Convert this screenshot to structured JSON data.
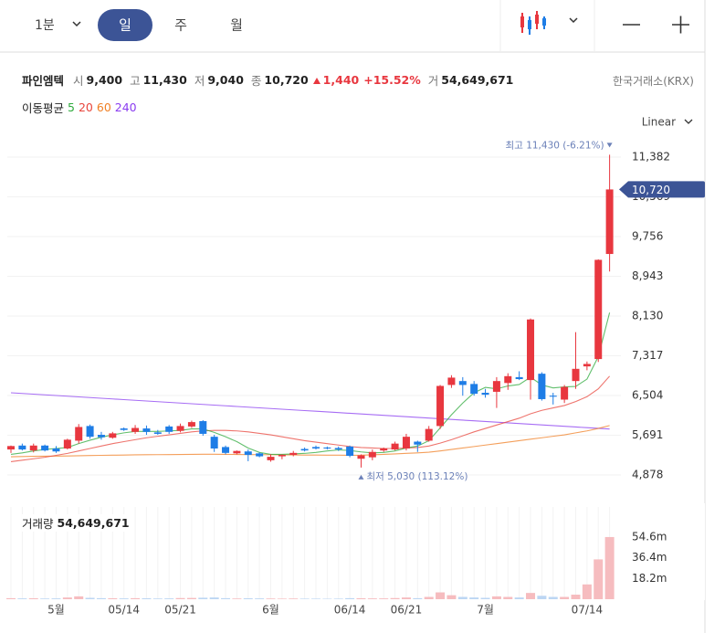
{
  "toolbar": {
    "tabs": [
      "1분",
      "일",
      "주",
      "월"
    ]
  },
  "header": {
    "name": "파인엠텍",
    "fields": [
      {
        "label": "시",
        "value": "9,400"
      },
      {
        "label": "고",
        "value": "11,430"
      },
      {
        "label": "저",
        "value": "9,040"
      },
      {
        "label": "종",
        "value": "10,720"
      }
    ],
    "change": "1,440",
    "change_pct": "+15.52%",
    "volume_label": "거",
    "volume": "54,649,671",
    "exchange": "한국거래소(KRX)",
    "ma_label": "이동평균",
    "scale_mode": "Linear"
  },
  "chart_data": [
    {
      "type": "candlestick",
      "up_color": "#e8373f",
      "down_color": "#1e7de6",
      "grid": true,
      "categories": [
        null,
        null,
        null,
        null,
        "5월",
        null,
        null,
        null,
        null,
        null,
        "05/14",
        null,
        null,
        null,
        null,
        "05/21",
        null,
        null,
        null,
        null,
        null,
        null,
        null,
        "6월",
        null,
        null,
        null,
        null,
        null,
        null,
        "06/14",
        null,
        null,
        null,
        null,
        "06/21",
        null,
        null,
        null,
        null,
        null,
        null,
        "7월",
        null,
        null,
        null,
        null,
        null,
        null,
        null,
        null,
        "07/14",
        null,
        null
      ],
      "open": [
        5400,
        5480,
        5380,
        5480,
        5420,
        5420,
        5580,
        5880,
        5700,
        5640,
        5830,
        5760,
        5830,
        5750,
        5870,
        5780,
        5870,
        5980,
        5660,
        5450,
        5320,
        5360,
        5320,
        5180,
        5260,
        5290,
        5410,
        5450,
        5440,
        5430,
        5460,
        5210,
        5240,
        5380,
        5400,
        5420,
        5560,
        5580,
        5880,
        6720,
        6800,
        6740,
        6560,
        6580,
        6760,
        6880,
        6820,
        6950,
        6500,
        6420,
        6800,
        7100,
        7250,
        9400
      ],
      "high": [
        5480,
        5520,
        5520,
        5500,
        5470,
        5620,
        5920,
        5910,
        5760,
        5760,
        5850,
        5900,
        5890,
        5800,
        5900,
        5930,
        5990,
        6000,
        5700,
        5480,
        5380,
        5400,
        5340,
        5300,
        5300,
        5370,
        5440,
        5480,
        5460,
        5460,
        5480,
        5300,
        5400,
        5440,
        5560,
        5720,
        5580,
        5880,
        6720,
        6920,
        6880,
        6800,
        6640,
        6880,
        6960,
        7000,
        8080,
        6980,
        6560,
        6720,
        7800,
        7200,
        9290,
        11430
      ],
      "low": [
        5330,
        5380,
        5340,
        5360,
        5330,
        5400,
        5520,
        5620,
        5600,
        5620,
        5780,
        5720,
        5700,
        5700,
        5720,
        5750,
        5840,
        5680,
        5350,
        5300,
        5300,
        5160,
        5240,
        5150,
        5200,
        5260,
        5360,
        5400,
        5400,
        5370,
        5240,
        5030,
        5180,
        5350,
        5380,
        5380,
        5350,
        5560,
        5820,
        6660,
        6500,
        6500,
        6460,
        6250,
        6620,
        6820,
        6420,
        6400,
        6320,
        6350,
        6640,
        7020,
        7190,
        9040
      ],
      "close": [
        5470,
        5400,
        5480,
        5380,
        5360,
        5600,
        5860,
        5660,
        5650,
        5730,
        5800,
        5840,
        5760,
        5720,
        5760,
        5880,
        5960,
        5720,
        5420,
        5330,
        5370,
        5290,
        5260,
        5250,
        5290,
        5330,
        5380,
        5420,
        5420,
        5400,
        5270,
        5280,
        5350,
        5420,
        5520,
        5660,
        5500,
        5820,
        6700,
        6870,
        6720,
        6540,
        6520,
        6800,
        6900,
        6840,
        8060,
        6430,
        6480,
        6680,
        7050,
        7150,
        9280,
        10720
      ],
      "last_label": "10,720",
      "high_annotation": "최고 11,430 (-6.21%)",
      "low_annotation": "최저 5,030 (113.12%)",
      "moving_averages": [
        {
          "name": "5",
          "color": "#2eaa3c",
          "values": [
            5300,
            5330,
            5370,
            5400,
            5420,
            5440,
            5520,
            5590,
            5650,
            5700,
            5740,
            5770,
            5770,
            5770,
            5780,
            5790,
            5820,
            5820,
            5750,
            5660,
            5560,
            5430,
            5340,
            5300,
            5300,
            5310,
            5320,
            5340,
            5370,
            5390,
            5380,
            5350,
            5330,
            5340,
            5370,
            5430,
            5470,
            5580,
            5840,
            6110,
            6350,
            6560,
            6670,
            6640,
            6700,
            6730,
            6880,
            6720,
            6660,
            6680,
            6690,
            6840,
            7300,
            8200
          ]
        },
        {
          "name": "20",
          "color": "#e8453c",
          "values": [
            5150,
            5180,
            5210,
            5240,
            5280,
            5320,
            5370,
            5420,
            5470,
            5520,
            5560,
            5600,
            5640,
            5670,
            5700,
            5730,
            5760,
            5780,
            5790,
            5790,
            5780,
            5760,
            5730,
            5700,
            5660,
            5620,
            5580,
            5550,
            5520,
            5490,
            5460,
            5440,
            5430,
            5420,
            5420,
            5430,
            5440,
            5470,
            5530,
            5600,
            5680,
            5760,
            5830,
            5900,
            5970,
            6040,
            6130,
            6200,
            6250,
            6300,
            6380,
            6480,
            6640,
            6900
          ]
        },
        {
          "name": "60",
          "color": "#f07f24",
          "values": [
            5250,
            5255,
            5260,
            5262,
            5265,
            5268,
            5272,
            5276,
            5280,
            5283,
            5286,
            5290,
            5292,
            5294,
            5296,
            5298,
            5300,
            5302,
            5302,
            5300,
            5298,
            5296,
            5294,
            5292,
            5290,
            5288,
            5286,
            5285,
            5284,
            5283,
            5282,
            5283,
            5290,
            5300,
            5310,
            5320,
            5330,
            5345,
            5370,
            5400,
            5430,
            5460,
            5490,
            5520,
            5550,
            5580,
            5610,
            5640,
            5670,
            5700,
            5740,
            5780,
            5830,
            5890
          ]
        },
        {
          "name": "240",
          "color": "#8a3cf0",
          "values": [
            6560,
            6546,
            6532,
            6518,
            6504,
            6490,
            6476,
            6462,
            6448,
            6434,
            6420,
            6406,
            6392,
            6378,
            6364,
            6350,
            6336,
            6322,
            6308,
            6294,
            6280,
            6266,
            6252,
            6238,
            6224,
            6210,
            6196,
            6182,
            6168,
            6154,
            6140,
            6126,
            6112,
            6098,
            6084,
            6070,
            6056,
            6042,
            6028,
            6014,
            6000,
            5986,
            5972,
            5958,
            5944,
            5930,
            5916,
            5902,
            5888,
            5874,
            5860,
            5846,
            5832,
            5818
          ]
        }
      ],
      "ylim": [
        4411,
        11793
      ],
      "yticks": [
        {
          "value": 4878,
          "label": "4,878"
        },
        {
          "value": 5691,
          "label": "5,691"
        },
        {
          "value": 6504,
          "label": "6,504"
        },
        {
          "value": 7317,
          "label": "7,317"
        },
        {
          "value": 8130,
          "label": "8,130"
        },
        {
          "value": 8943,
          "label": "8,943"
        },
        {
          "value": 9756,
          "label": "9,756"
        },
        {
          "value": 10569,
          "label": "10,569"
        },
        {
          "value": 11382,
          "label": "11,382"
        }
      ]
    },
    {
      "type": "bar",
      "title": "거래량",
      "current_label": "54,649,671",
      "up_color": "#f6bcbf",
      "down_color": "#bcd6f3",
      "values": [
        900000,
        700000,
        800000,
        600000,
        700000,
        1500000,
        2500000,
        1200000,
        900000,
        800000,
        700000,
        900000,
        800000,
        600000,
        700000,
        1000000,
        1100000,
        1300000,
        1500000,
        900000,
        600000,
        800000,
        700000,
        600000,
        500000,
        600000,
        500000,
        500000,
        400000,
        500000,
        900000,
        800000,
        700000,
        700000,
        1000000,
        1500000,
        900000,
        2000000,
        6000000,
        3500000,
        2000000,
        1500000,
        1200000,
        2500000,
        2000000,
        1500000,
        5500000,
        3000000,
        2000000,
        2000000,
        4000000,
        13000000,
        35000000,
        54649671
      ],
      "ylim": [
        0,
        81100000
      ],
      "yticks": [
        {
          "value": 18200000,
          "label": "18.2m"
        },
        {
          "value": 36400000,
          "label": "36.4m"
        },
        {
          "value": 54600000,
          "label": "54.6m"
        }
      ]
    }
  ]
}
